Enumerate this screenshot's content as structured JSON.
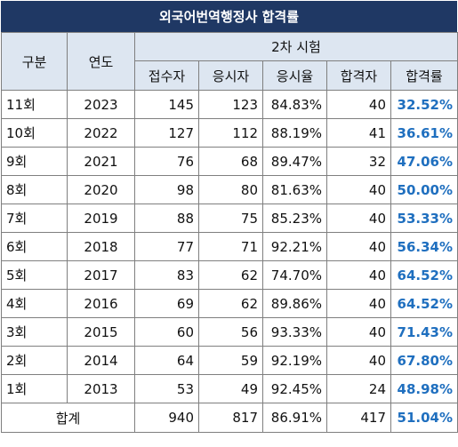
{
  "title": "외국어번역행정사 합격률",
  "headers": {
    "col_round": "구분",
    "col_year": "연도",
    "group_exam": "2차 시험",
    "applicants": "접수자",
    "takers": "응시자",
    "take_rate": "응시율",
    "passers": "합격자",
    "pass_rate": "합격률"
  },
  "rows": [
    {
      "round": "11회",
      "year": "2023",
      "applicants": "145",
      "takers": "123",
      "take_rate": "84.83%",
      "passers": "40",
      "pass_rate": "32.52%"
    },
    {
      "round": "10회",
      "year": "2022",
      "applicants": "127",
      "takers": "112",
      "take_rate": "88.19%",
      "passers": "41",
      "pass_rate": "36.61%"
    },
    {
      "round": "9회",
      "year": "2021",
      "applicants": "76",
      "takers": "68",
      "take_rate": "89.47%",
      "passers": "32",
      "pass_rate": "47.06%"
    },
    {
      "round": "8회",
      "year": "2020",
      "applicants": "98",
      "takers": "80",
      "take_rate": "81.63%",
      "passers": "40",
      "pass_rate": "50.00%"
    },
    {
      "round": "7회",
      "year": "2019",
      "applicants": "88",
      "takers": "75",
      "take_rate": "85.23%",
      "passers": "40",
      "pass_rate": "53.33%"
    },
    {
      "round": "6회",
      "year": "2018",
      "applicants": "77",
      "takers": "71",
      "take_rate": "92.21%",
      "passers": "40",
      "pass_rate": "56.34%"
    },
    {
      "round": "5회",
      "year": "2017",
      "applicants": "83",
      "takers": "62",
      "take_rate": "74.70%",
      "passers": "40",
      "pass_rate": "64.52%"
    },
    {
      "round": "4회",
      "year": "2016",
      "applicants": "69",
      "takers": "62",
      "take_rate": "89.86%",
      "passers": "40",
      "pass_rate": "64.52%"
    },
    {
      "round": "3회",
      "year": "2015",
      "applicants": "60",
      "takers": "56",
      "take_rate": "93.33%",
      "passers": "40",
      "pass_rate": "71.43%"
    },
    {
      "round": "2회",
      "year": "2014",
      "applicants": "64",
      "takers": "59",
      "take_rate": "92.19%",
      "passers": "40",
      "pass_rate": "67.80%"
    },
    {
      "round": "1회",
      "year": "2013",
      "applicants": "53",
      "takers": "49",
      "take_rate": "92.45%",
      "passers": "24",
      "pass_rate": "48.98%"
    }
  ],
  "total": {
    "label": "합계",
    "applicants": "940",
    "takers": "817",
    "take_rate": "86.91%",
    "passers": "417",
    "pass_rate": "51.04%"
  },
  "colors": {
    "title_bg": "#1f3864",
    "header_bg": "#dde6f1",
    "rate_text": "#1f6fbf"
  }
}
